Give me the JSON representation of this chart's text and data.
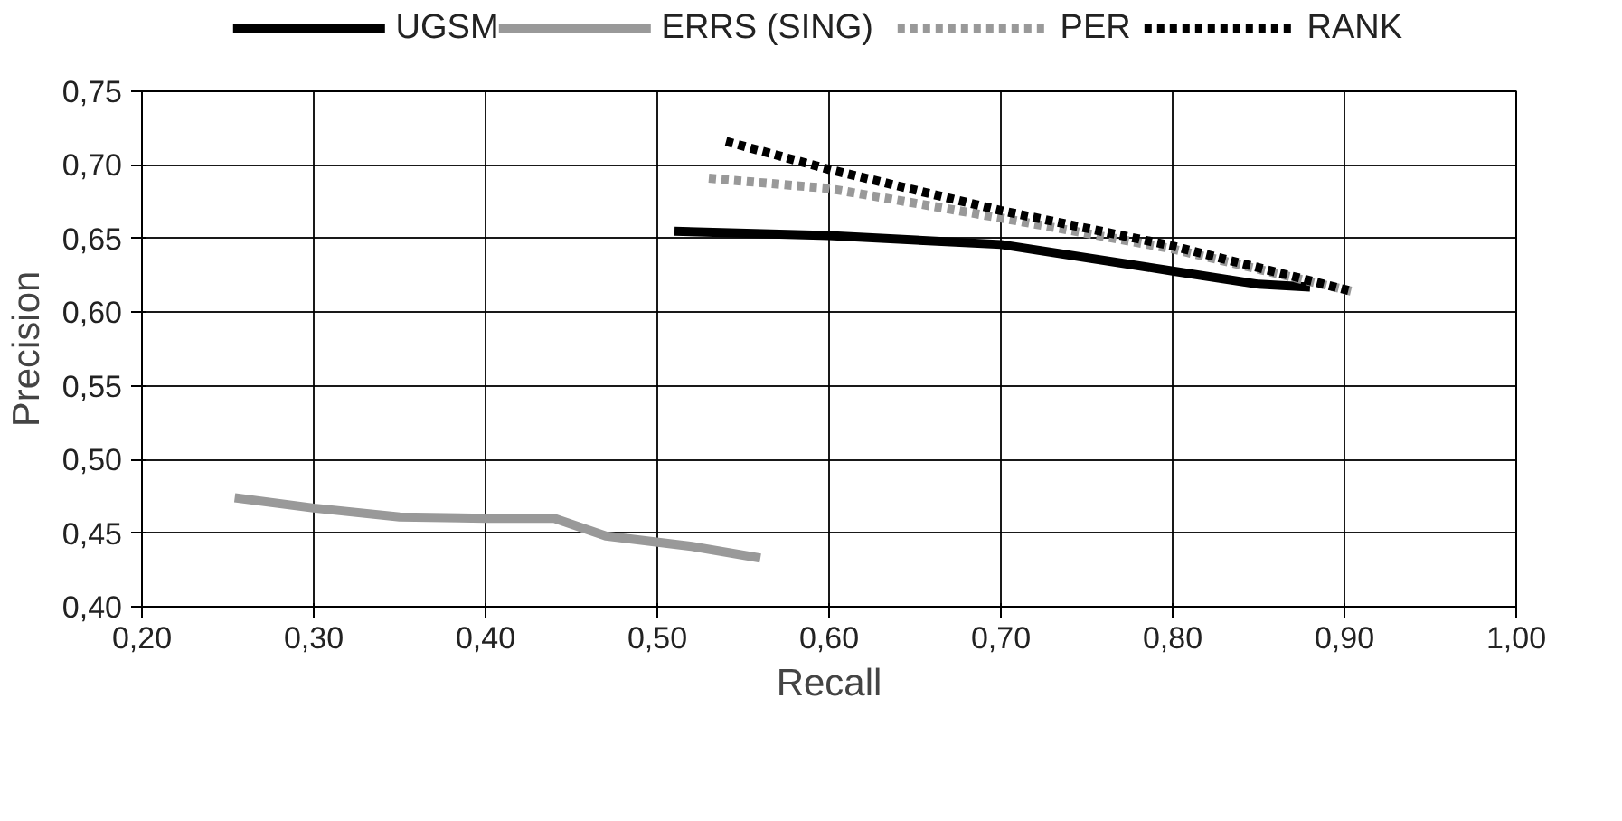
{
  "chart_data": {
    "type": "line",
    "xlabel": "Recall",
    "ylabel": "Precision",
    "xlim": [
      0.2,
      1.0
    ],
    "ylim": [
      0.4,
      0.75
    ],
    "xticks": [
      {
        "value": 0.2,
        "label": "0,20"
      },
      {
        "value": 0.3,
        "label": "0,30"
      },
      {
        "value": 0.4,
        "label": "0,40"
      },
      {
        "value": 0.5,
        "label": "0,50"
      },
      {
        "value": 0.6,
        "label": "0,60"
      },
      {
        "value": 0.7,
        "label": "0,70"
      },
      {
        "value": 0.8,
        "label": "0,80"
      },
      {
        "value": 0.9,
        "label": "0,90"
      },
      {
        "value": 1.0,
        "label": "1,00"
      }
    ],
    "yticks": [
      {
        "value": 0.4,
        "label": "0,40"
      },
      {
        "value": 0.45,
        "label": "0,45"
      },
      {
        "value": 0.5,
        "label": "0,50"
      },
      {
        "value": 0.55,
        "label": "0,55"
      },
      {
        "value": 0.6,
        "label": "0,60"
      },
      {
        "value": 0.65,
        "label": "0,65"
      },
      {
        "value": 0.7,
        "label": "0,70"
      },
      {
        "value": 0.75,
        "label": "0,75"
      }
    ],
    "grid": true,
    "legend": "top",
    "series": [
      {
        "name": "UGSM",
        "color": "#000000",
        "line_style": "solid",
        "x": [
          0.51,
          0.6,
          0.7,
          0.8,
          0.85,
          0.88
        ],
        "values": [
          0.655,
          0.652,
          0.646,
          0.628,
          0.619,
          0.617
        ]
      },
      {
        "name": "ERRS (SING)",
        "color": "#999999",
        "line_style": "solid",
        "x": [
          0.254,
          0.3,
          0.35,
          0.4,
          0.44,
          0.47,
          0.52,
          0.56
        ],
        "values": [
          0.474,
          0.467,
          0.461,
          0.46,
          0.46,
          0.448,
          0.441,
          0.433
        ]
      },
      {
        "name": "PER",
        "color": "#999999",
        "line_style": "dashed",
        "x": [
          0.53,
          0.6,
          0.7,
          0.8,
          0.905
        ],
        "values": [
          0.691,
          0.684,
          0.664,
          0.643,
          0.614
        ]
      },
      {
        "name": "RANK",
        "color": "#000000",
        "line_style": "dashed",
        "x": [
          0.54,
          0.6,
          0.7,
          0.8,
          0.905
        ],
        "values": [
          0.716,
          0.697,
          0.669,
          0.645,
          0.614
        ]
      }
    ]
  }
}
